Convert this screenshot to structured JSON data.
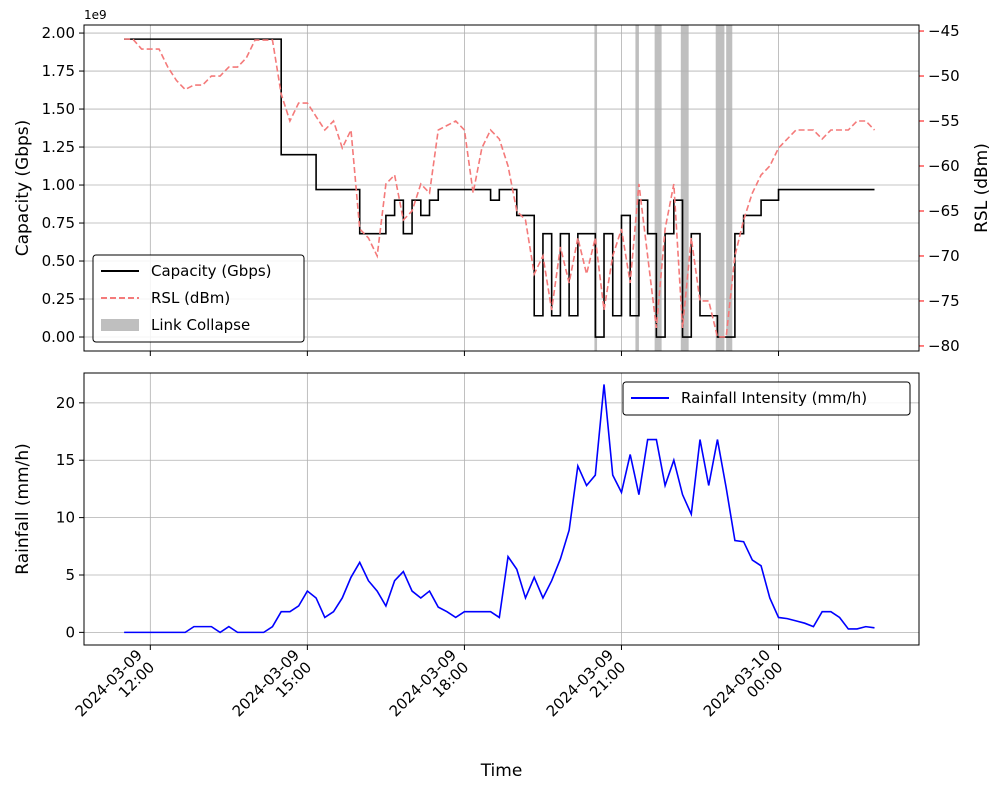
{
  "chart_data": [
    {
      "type": "line",
      "ylabel": "Capacity (Gbps)",
      "y2label": "RSL (dBm)",
      "y_offset_label": "1e9",
      "x": [
        "2024-03-09 11:30",
        "2024-03-09 11:40",
        "2024-03-09 11:50",
        "2024-03-09 12:00",
        "2024-03-09 12:10",
        "2024-03-09 12:20",
        "2024-03-09 12:30",
        "2024-03-09 12:40",
        "2024-03-09 12:50",
        "2024-03-09 13:00",
        "2024-03-09 13:10",
        "2024-03-09 13:20",
        "2024-03-09 13:30",
        "2024-03-09 13:40",
        "2024-03-09 13:50",
        "2024-03-09 14:00",
        "2024-03-09 14:10",
        "2024-03-09 14:20",
        "2024-03-09 14:30",
        "2024-03-09 14:40",
        "2024-03-09 14:50",
        "2024-03-09 15:00",
        "2024-03-09 15:10",
        "2024-03-09 15:20",
        "2024-03-09 15:30",
        "2024-03-09 15:40",
        "2024-03-09 15:50",
        "2024-03-09 16:00",
        "2024-03-09 16:10",
        "2024-03-09 16:20",
        "2024-03-09 16:30",
        "2024-03-09 16:40",
        "2024-03-09 16:50",
        "2024-03-09 17:00",
        "2024-03-09 17:10",
        "2024-03-09 17:20",
        "2024-03-09 17:30",
        "2024-03-09 17:40",
        "2024-03-09 17:50",
        "2024-03-09 18:00",
        "2024-03-09 18:10",
        "2024-03-09 18:20",
        "2024-03-09 18:30",
        "2024-03-09 18:40",
        "2024-03-09 18:50",
        "2024-03-09 19:00",
        "2024-03-09 19:10",
        "2024-03-09 19:20",
        "2024-03-09 19:30",
        "2024-03-09 19:40",
        "2024-03-09 19:50",
        "2024-03-09 20:00",
        "2024-03-09 20:10",
        "2024-03-09 20:20",
        "2024-03-09 20:30",
        "2024-03-09 20:40",
        "2024-03-09 20:50",
        "2024-03-09 21:00",
        "2024-03-09 21:10",
        "2024-03-09 21:20",
        "2024-03-09 21:30",
        "2024-03-09 21:40",
        "2024-03-09 21:50",
        "2024-03-09 22:00",
        "2024-03-09 22:10",
        "2024-03-09 22:20",
        "2024-03-09 22:30",
        "2024-03-09 22:40",
        "2024-03-09 22:50",
        "2024-03-09 23:00",
        "2024-03-09 23:10",
        "2024-03-09 23:20",
        "2024-03-09 23:30",
        "2024-03-09 23:40",
        "2024-03-09 23:50",
        "2024-03-10 00:00",
        "2024-03-10 00:10",
        "2024-03-10 00:20",
        "2024-03-10 00:30",
        "2024-03-10 00:40",
        "2024-03-10 00:50",
        "2024-03-10 01:00",
        "2024-03-10 01:10",
        "2024-03-10 01:20",
        "2024-03-10 01:30",
        "2024-03-10 01:40",
        "2024-03-10 01:50"
      ],
      "series": [
        {
          "name": "Capacity (Gbps)",
          "color": "#000000",
          "step": true,
          "values": [
            1.96,
            1.96,
            1.96,
            1.96,
            1.96,
            1.96,
            1.96,
            1.96,
            1.96,
            1.96,
            1.96,
            1.96,
            1.96,
            1.96,
            1.96,
            1.96,
            1.96,
            1.96,
            1.2,
            1.2,
            1.2,
            1.2,
            0.97,
            0.97,
            0.97,
            0.97,
            0.97,
            0.68,
            0.68,
            0.68,
            0.8,
            0.9,
            0.68,
            0.9,
            0.8,
            0.9,
            0.97,
            0.97,
            0.97,
            0.97,
            0.97,
            0.97,
            0.9,
            0.97,
            0.97,
            0.8,
            0.8,
            0.14,
            0.68,
            0.14,
            0.68,
            0.14,
            0.68,
            0.68,
            0.0,
            0.68,
            0.14,
            0.8,
            0.14,
            0.9,
            0.68,
            0.0,
            0.68,
            0.9,
            0.0,
            0.68,
            0.14,
            0.14,
            0.0,
            0.0,
            0.68,
            0.8,
            0.8,
            0.9,
            0.9,
            0.97,
            0.97,
            0.97,
            0.97,
            0.97,
            0.97,
            0.97,
            0.97,
            0.97,
            0.97,
            0.97,
            0.97
          ]
        },
        {
          "name": "RSL (dBm)",
          "color": "#f47a7a",
          "axis": "y2",
          "dashed": true,
          "values": [
            -45.9,
            -45.9,
            -47,
            -47,
            -47,
            -49,
            -50.5,
            -51.5,
            -51,
            -51,
            -50,
            -50,
            -49,
            -49,
            -48,
            -46,
            -46,
            -46,
            -52,
            -55,
            -53,
            -53,
            -54.5,
            -56,
            -55,
            -58,
            -56,
            -67,
            -68,
            -70,
            -62,
            -61,
            -66,
            -65,
            -62,
            -63,
            -56,
            -55.5,
            -55,
            -56,
            -63,
            -58,
            -56,
            -57,
            -60,
            -65,
            -66,
            -72,
            -70,
            -76,
            -69,
            -73,
            -68,
            -72,
            -68,
            -76,
            -70,
            -67,
            -73,
            -62,
            -70,
            -78,
            -67,
            -62,
            -78,
            -68,
            -75,
            -75,
            -79,
            -79,
            -70,
            -66,
            -63,
            -61,
            -60,
            -58,
            -57,
            -56,
            -56,
            -56,
            -57,
            -56,
            -56,
            -56,
            -55,
            -55,
            -56
          ]
        }
      ],
      "spans": {
        "name": "Link Collapse",
        "color": "#bfbfbf",
        "ranges": [
          [
            "2024-03-09 20:29",
            "2024-03-09 20:32"
          ],
          [
            "2024-03-09 21:16",
            "2024-03-09 21:20"
          ],
          [
            "2024-03-09 21:38",
            "2024-03-09 21:46"
          ],
          [
            "2024-03-09 22:08",
            "2024-03-09 22:17"
          ],
          [
            "2024-03-09 22:48",
            "2024-03-09 22:58"
          ],
          [
            "2024-03-09 23:00",
            "2024-03-09 23:07"
          ]
        ]
      },
      "xlim": [
        "2024-03-09 10:44",
        "2024-03-10 02:41"
      ],
      "xticks": [
        "2024-03-09 12:00",
        "2024-03-09 15:00",
        "2024-03-09 18:00",
        "2024-03-09 21:00",
        "2024-03-10 00:00"
      ],
      "ylim": [
        -0.092,
        2.053
      ],
      "yticks": [
        {
          "value": 0,
          "label": "0.00"
        },
        {
          "value": 0.25,
          "label": "0.25"
        },
        {
          "value": 0.5,
          "label": "0.50"
        },
        {
          "value": 0.75,
          "label": "0.75"
        },
        {
          "value": 1,
          "label": "1.00"
        },
        {
          "value": 1.25,
          "label": "1.25"
        },
        {
          "value": 1.5,
          "label": "1.50"
        },
        {
          "value": 1.75,
          "label": "1.75"
        },
        {
          "value": 2,
          "label": "2.00"
        }
      ],
      "y2lim": [
        -80.56,
        -44.33
      ],
      "y2ticks": [
        {
          "value": -80,
          "label": "−80"
        },
        {
          "value": -75,
          "label": "−75"
        },
        {
          "value": -70,
          "label": "−70"
        },
        {
          "value": -65,
          "label": "−65"
        },
        {
          "value": -60,
          "label": "−60"
        },
        {
          "value": -55,
          "label": "−55"
        },
        {
          "value": -50,
          "label": "−50"
        },
        {
          "value": -45,
          "label": "−45"
        }
      ],
      "y2color": "#ff0000",
      "grid": true,
      "legend": "lower left"
    },
    {
      "type": "line",
      "ylabel": "Rainfall (mm/h)",
      "xlabel": "Time",
      "x": [
        "2024-03-09 11:30",
        "2024-03-09 11:40",
        "2024-03-09 11:50",
        "2024-03-09 12:00",
        "2024-03-09 12:10",
        "2024-03-09 12:20",
        "2024-03-09 12:30",
        "2024-03-09 12:40",
        "2024-03-09 12:50",
        "2024-03-09 13:00",
        "2024-03-09 13:10",
        "2024-03-09 13:20",
        "2024-03-09 13:30",
        "2024-03-09 13:40",
        "2024-03-09 13:50",
        "2024-03-09 14:00",
        "2024-03-09 14:10",
        "2024-03-09 14:20",
        "2024-03-09 14:30",
        "2024-03-09 14:40",
        "2024-03-09 14:50",
        "2024-03-09 15:00",
        "2024-03-09 15:10",
        "2024-03-09 15:20",
        "2024-03-09 15:30",
        "2024-03-09 15:40",
        "2024-03-09 15:50",
        "2024-03-09 16:00",
        "2024-03-09 16:10",
        "2024-03-09 16:20",
        "2024-03-09 16:30",
        "2024-03-09 16:40",
        "2024-03-09 16:50",
        "2024-03-09 17:00",
        "2024-03-09 17:10",
        "2024-03-09 17:20",
        "2024-03-09 17:30",
        "2024-03-09 17:40",
        "2024-03-09 17:50",
        "2024-03-09 18:00",
        "2024-03-09 18:10",
        "2024-03-09 18:20",
        "2024-03-09 18:30",
        "2024-03-09 18:40",
        "2024-03-09 18:50",
        "2024-03-09 19:00",
        "2024-03-09 19:10",
        "2024-03-09 19:20",
        "2024-03-09 19:30",
        "2024-03-09 19:40",
        "2024-03-09 19:50",
        "2024-03-09 20:00",
        "2024-03-09 20:10",
        "2024-03-09 20:20",
        "2024-03-09 20:30",
        "2024-03-09 20:40",
        "2024-03-09 20:50",
        "2024-03-09 21:00",
        "2024-03-09 21:10",
        "2024-03-09 21:20",
        "2024-03-09 21:30",
        "2024-03-09 21:40",
        "2024-03-09 21:50",
        "2024-03-09 22:00",
        "2024-03-09 22:10",
        "2024-03-09 22:20",
        "2024-03-09 22:30",
        "2024-03-09 22:40",
        "2024-03-09 22:50",
        "2024-03-09 23:00",
        "2024-03-09 23:10",
        "2024-03-09 23:20",
        "2024-03-09 23:30",
        "2024-03-09 23:40",
        "2024-03-09 23:50",
        "2024-03-10 00:00",
        "2024-03-10 00:10",
        "2024-03-10 00:20",
        "2024-03-10 00:30",
        "2024-03-10 00:40",
        "2024-03-10 00:50",
        "2024-03-10 01:00",
        "2024-03-10 01:10",
        "2024-03-10 01:20",
        "2024-03-10 01:30",
        "2024-03-10 01:40",
        "2024-03-10 01:50"
      ],
      "series": [
        {
          "name": "Rainfall Intensity (mm/h)",
          "color": "#0000ff",
          "values": [
            0,
            0,
            0,
            0,
            0,
            0,
            0,
            0,
            0.5,
            0.5,
            0.5,
            0,
            0.5,
            0,
            0,
            0,
            0,
            0.5,
            1.8,
            1.8,
            2.3,
            3.6,
            3.0,
            1.3,
            1.8,
            3.0,
            4.8,
            6.1,
            4.5,
            3.6,
            2.3,
            4.5,
            5.3,
            3.6,
            3.0,
            3.6,
            2.2,
            1.8,
            1.3,
            1.8,
            1.8,
            1.8,
            1.8,
            1.3,
            6.6,
            5.5,
            3.0,
            4.8,
            3.0,
            4.5,
            6.4,
            8.9,
            14.5,
            12.8,
            13.7,
            21.6,
            13.7,
            12.2,
            15.5,
            12.0,
            16.8,
            16.8,
            12.8,
            15.0,
            12.0,
            10.3,
            16.8,
            12.8,
            16.8,
            12.6,
            8.0,
            7.9,
            6.3,
            5.8,
            3.0,
            1.3,
            1.2,
            1.0,
            0.8,
            0.5,
            1.8,
            1.8,
            1.3,
            0.3,
            0.3,
            0.5,
            0.4
          ]
        }
      ],
      "xlim": [
        "2024-03-09 10:44",
        "2024-03-10 02:41"
      ],
      "xticks": [
        "2024-03-09 12:00",
        "2024-03-09 15:00",
        "2024-03-09 18:00",
        "2024-03-09 21:00",
        "2024-03-10 00:00"
      ],
      "ylim": [
        -1.1,
        22.6
      ],
      "yticks": [
        0,
        5,
        10,
        15,
        20
      ],
      "grid": true,
      "legend": "upper right"
    }
  ]
}
